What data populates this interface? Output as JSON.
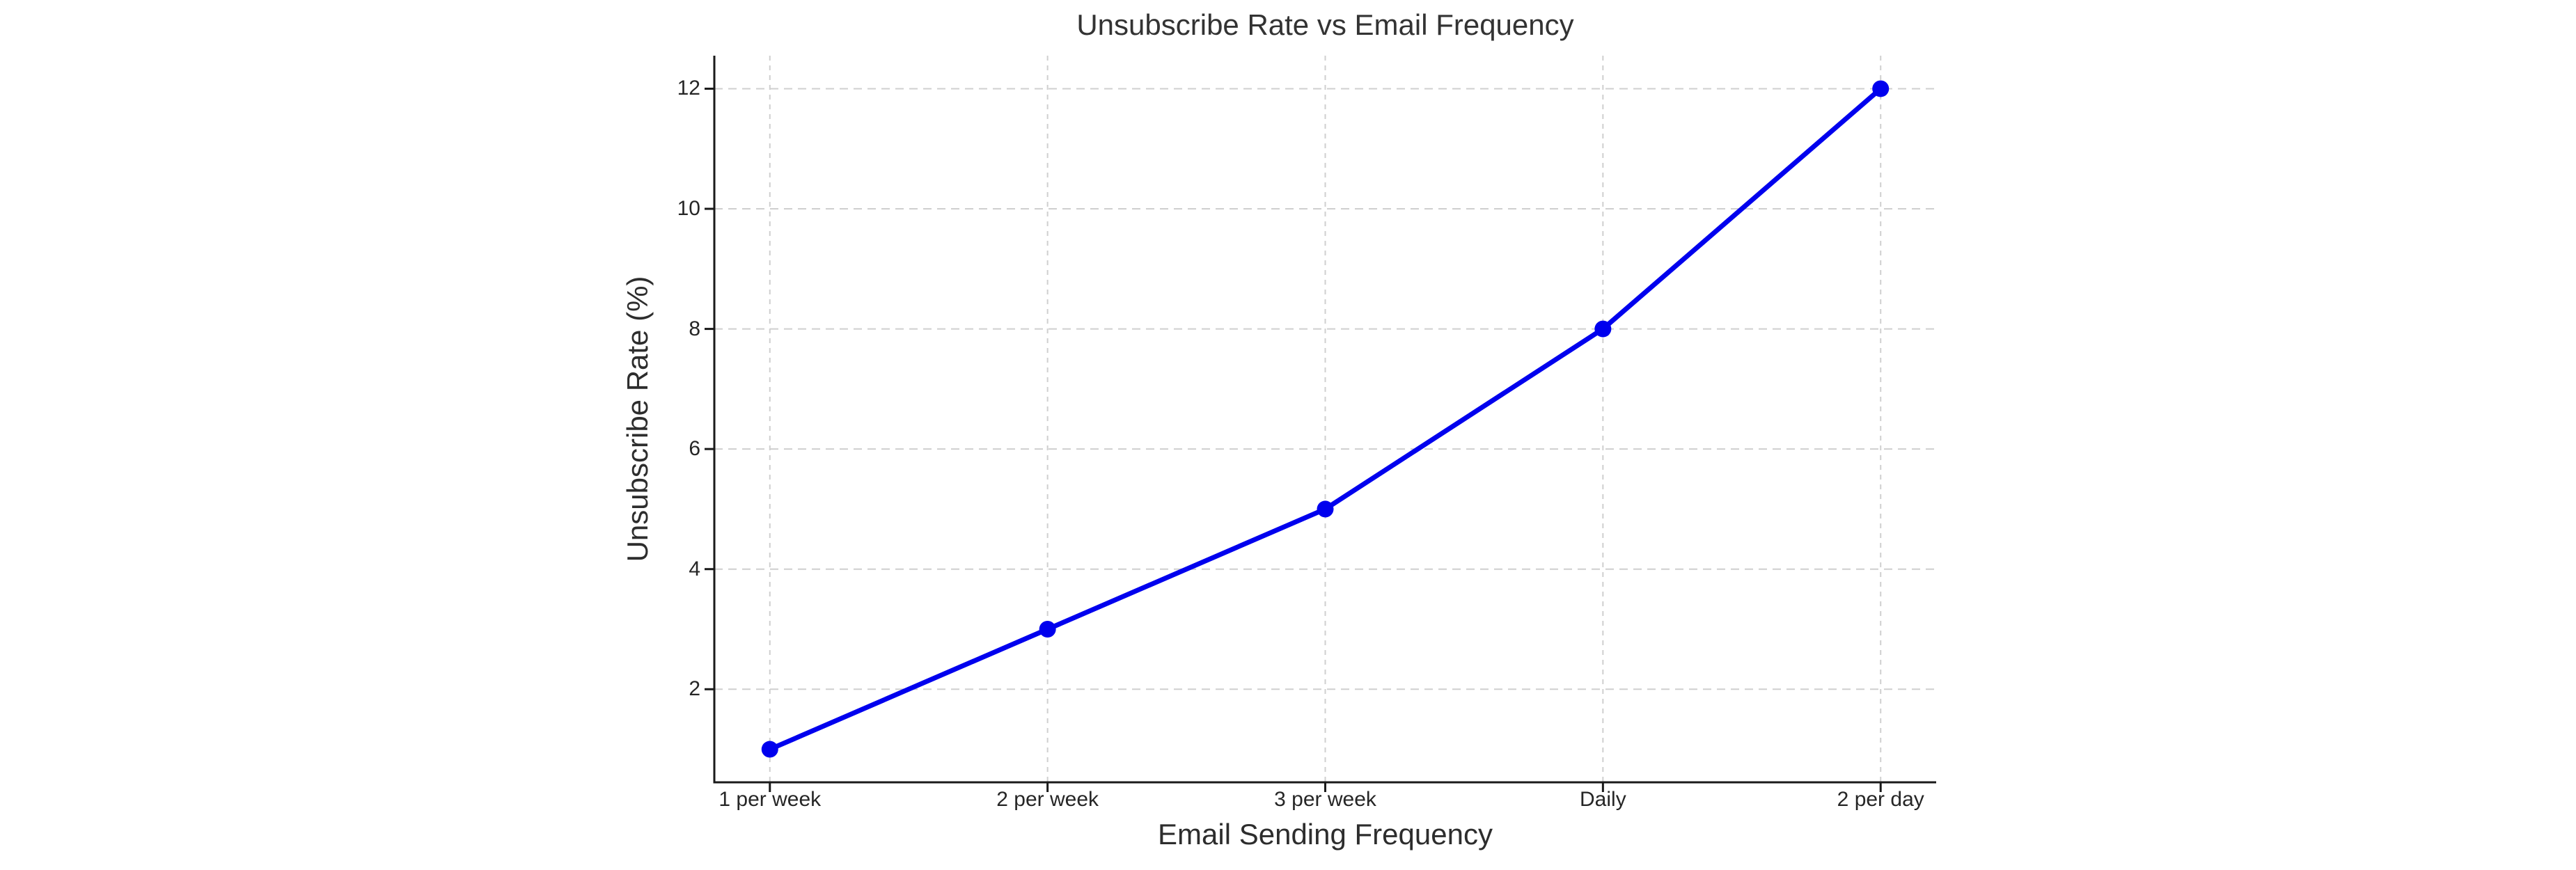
{
  "figure": {
    "background": "#ffffff"
  },
  "chart_data": {
    "type": "line",
    "title": "Unsubscribe Rate vs Email Frequency",
    "xlabel": "Email Sending Frequency",
    "ylabel": "Unsubscribe Rate (%)",
    "categories": [
      "1 per week",
      "2 per week",
      "3 per week",
      "Daily",
      "2 per day"
    ],
    "values": [
      1,
      3,
      5,
      8,
      12
    ],
    "yticks": [
      2,
      4,
      6,
      8,
      10,
      12
    ],
    "ylim": [
      0.45,
      12.55
    ],
    "grid": true,
    "grid_style": "dashed",
    "legend": false,
    "marker": "circle",
    "line_color": "#0000ee",
    "grid_color": "#cfcfcf",
    "spine_color": "#1a1a1a",
    "text_color": "#2d2d2d",
    "title_color": "#333333"
  }
}
